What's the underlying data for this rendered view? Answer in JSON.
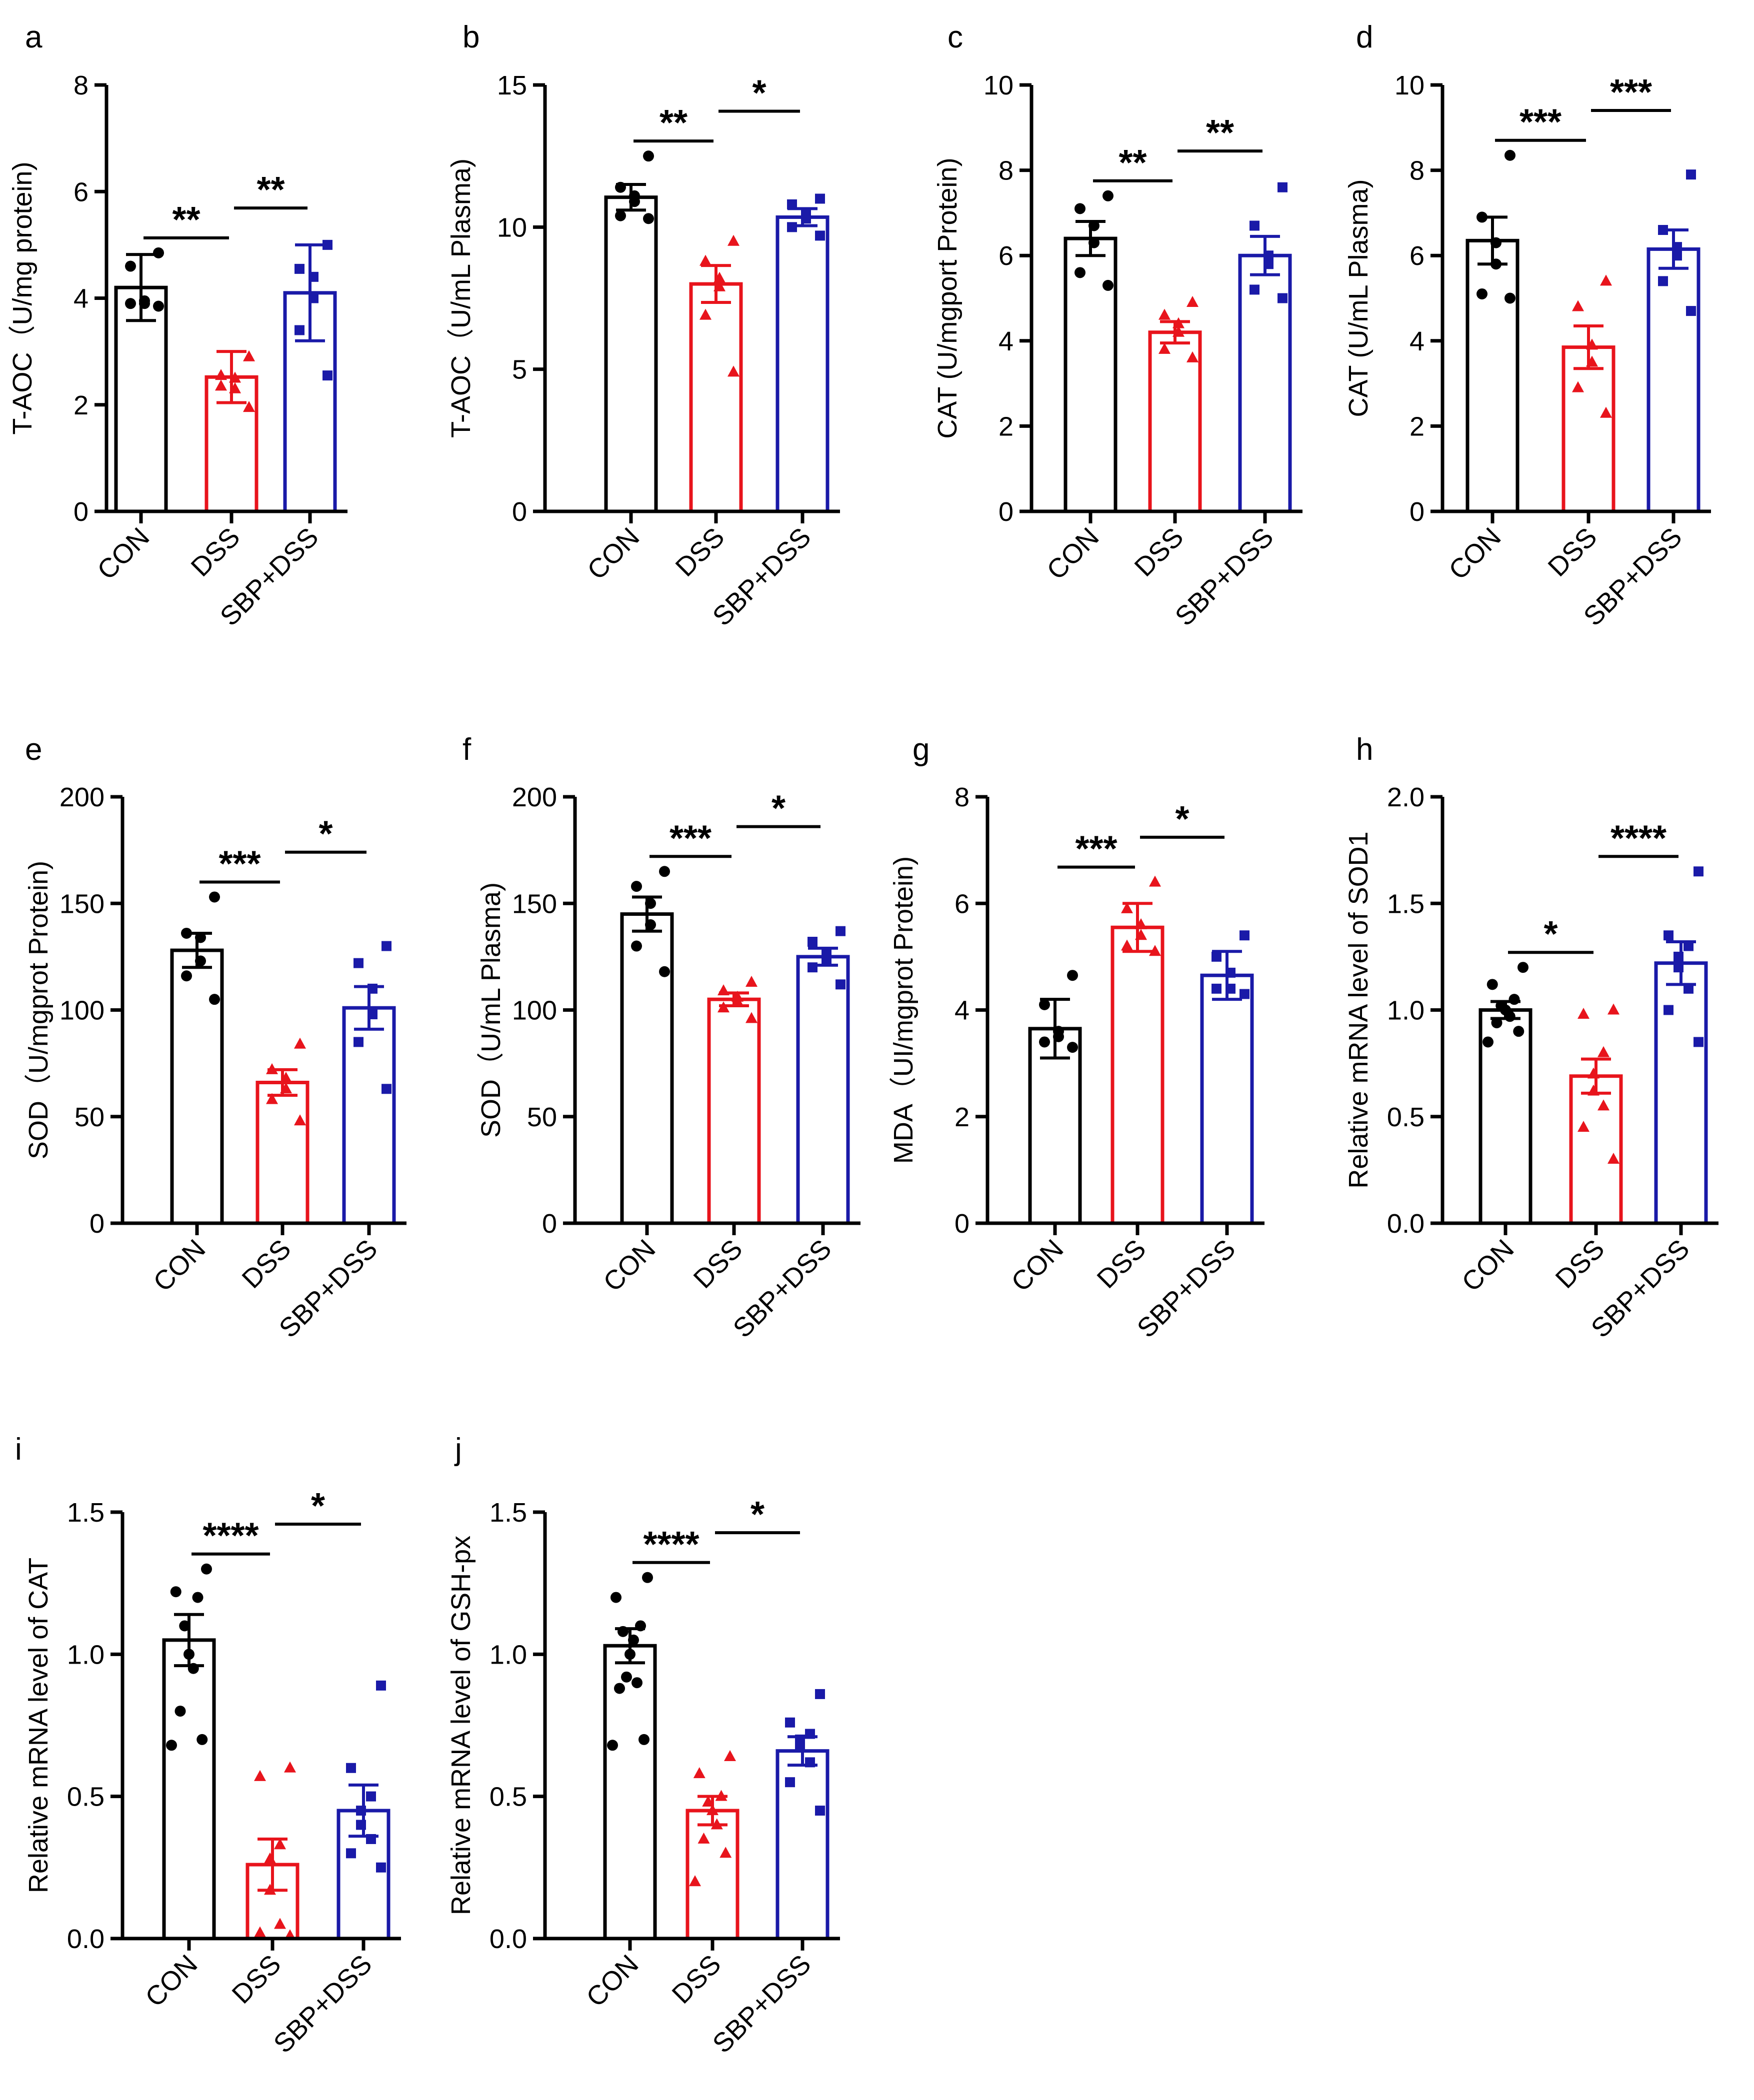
{
  "chart_data": [
    {
      "panel": "a",
      "type": "bar",
      "title": "",
      "ylabel": "T-AOC（U/mg protein)",
      "ylim": [
        0,
        8
      ],
      "yticks": [
        "0",
        "2",
        "4",
        "6",
        "8"
      ],
      "categories": [
        "CON",
        "DSS",
        "SBP+DSS"
      ],
      "series": [
        {
          "name": "CON",
          "mean": 4.2,
          "sem": 0.62,
          "points": [
            4.85,
            4.6,
            3.95,
            3.9,
            3.9,
            3.85
          ]
        },
        {
          "name": "DSS",
          "mean": 2.52,
          "sem": 0.48,
          "points": [
            2.9,
            2.55,
            2.5,
            2.3,
            2.35,
            1.95
          ]
        },
        {
          "name": "SBP+DSS",
          "mean": 4.1,
          "sem": 0.9,
          "points": [
            5.0,
            4.55,
            4.4,
            4.0,
            3.4,
            2.55
          ]
        }
      ],
      "significance": [
        {
          "from": 0,
          "to": 1,
          "label": "**"
        },
        {
          "from": 1,
          "to": 2,
          "label": "**"
        }
      ]
    },
    {
      "panel": "b",
      "type": "bar",
      "title": "",
      "ylabel": "T-AOC（U/mL Plasma)",
      "ylim": [
        0,
        15
      ],
      "yticks": [
        "0",
        "5",
        "10",
        "15"
      ],
      "categories": [
        "CON",
        "DSS",
        "SBP+DSS"
      ],
      "series": [
        {
          "name": "CON",
          "mean": 11.05,
          "sem": 0.45,
          "points": [
            12.5,
            11.4,
            11.1,
            10.9,
            10.4,
            10.3
          ]
        },
        {
          "name": "DSS",
          "mean": 8.0,
          "sem": 0.65,
          "points": [
            9.5,
            8.8,
            8.2,
            7.9,
            6.9,
            4.9
          ]
        },
        {
          "name": "SBP+DSS",
          "mean": 10.35,
          "sem": 0.3,
          "points": [
            11.0,
            10.8,
            10.5,
            10.3,
            10.0,
            9.7
          ]
        }
      ],
      "significance": [
        {
          "from": 0,
          "to": 1,
          "label": "**"
        },
        {
          "from": 1,
          "to": 2,
          "label": "*"
        }
      ]
    },
    {
      "panel": "c",
      "type": "bar",
      "title": "",
      "ylabel": "CAT (U/mgport Protein)",
      "ylim": [
        0,
        10
      ],
      "yticks": [
        "0",
        "2",
        "4",
        "6",
        "8",
        "10"
      ],
      "categories": [
        "CON",
        "DSS",
        "SBP+DSS"
      ],
      "series": [
        {
          "name": "CON",
          "mean": 6.4,
          "sem": 0.4,
          "points": [
            7.4,
            7.1,
            6.7,
            6.3,
            5.6,
            5.3
          ]
        },
        {
          "name": "DSS",
          "mean": 4.2,
          "sem": 0.25,
          "points": [
            4.9,
            4.6,
            4.4,
            4.2,
            3.8,
            3.6
          ]
        },
        {
          "name": "SBP+DSS",
          "mean": 6.0,
          "sem": 0.45,
          "points": [
            7.6,
            6.7,
            6.0,
            5.8,
            5.2,
            5.0
          ]
        }
      ],
      "significance": [
        {
          "from": 0,
          "to": 1,
          "label": "**"
        },
        {
          "from": 1,
          "to": 2,
          "label": "**"
        }
      ]
    },
    {
      "panel": "d",
      "type": "bar",
      "title": "",
      "ylabel": "CAT (U/mL Plasma)",
      "ylim": [
        0,
        10
      ],
      "yticks": [
        "0",
        "2",
        "4",
        "6",
        "8",
        "10"
      ],
      "categories": [
        "CON",
        "DSS",
        "SBP+DSS"
      ],
      "series": [
        {
          "name": "CON",
          "mean": 6.35,
          "sem": 0.55,
          "points": [
            8.35,
            6.9,
            6.3,
            5.8,
            5.1,
            5.0
          ]
        },
        {
          "name": "DSS",
          "mean": 3.85,
          "sem": 0.5,
          "points": [
            5.4,
            4.8,
            3.9,
            3.5,
            2.9,
            2.3
          ]
        },
        {
          "name": "SBP+DSS",
          "mean": 6.15,
          "sem": 0.45,
          "points": [
            7.9,
            6.6,
            6.2,
            6.0,
            5.4,
            4.7
          ]
        }
      ],
      "significance": [
        {
          "from": 0,
          "to": 1,
          "label": "***"
        },
        {
          "from": 1,
          "to": 2,
          "label": "***"
        }
      ]
    },
    {
      "panel": "e",
      "type": "bar",
      "title": "",
      "ylabel": "SOD（U/mgprot Protein)",
      "ylim": [
        0,
        200
      ],
      "yticks": [
        "0",
        "50",
        "100",
        "150",
        "200"
      ],
      "categories": [
        "CON",
        "DSS",
        "SBP+DSS"
      ],
      "series": [
        {
          "name": "CON",
          "mean": 128,
          "sem": 8,
          "points": [
            153,
            136,
            134,
            123,
            116,
            105
          ]
        },
        {
          "name": "DSS",
          "mean": 66,
          "sem": 6,
          "points": [
            84,
            72,
            68,
            63,
            58,
            48
          ]
        },
        {
          "name": "SBP+DSS",
          "mean": 101,
          "sem": 10,
          "points": [
            130,
            122,
            110,
            98,
            85,
            63
          ]
        }
      ],
      "significance": [
        {
          "from": 0,
          "to": 1,
          "label": "***"
        },
        {
          "from": 1,
          "to": 2,
          "label": "*"
        }
      ]
    },
    {
      "panel": "f",
      "type": "bar",
      "title": "",
      "ylabel": "SOD（U/mL Plasma)",
      "ylim": [
        0,
        200
      ],
      "yticks": [
        "0",
        "50",
        "100",
        "150",
        "200"
      ],
      "categories": [
        "CON",
        "DSS",
        "SBP+DSS"
      ],
      "series": [
        {
          "name": "CON",
          "mean": 145,
          "sem": 8,
          "points": [
            165,
            158,
            150,
            140,
            130,
            118
          ]
        },
        {
          "name": "DSS",
          "mean": 105,
          "sem": 3,
          "points": [
            113,
            109,
            106,
            104,
            101,
            96
          ]
        },
        {
          "name": "SBP+DSS",
          "mean": 125,
          "sem": 4,
          "points": [
            137,
            132,
            127,
            123,
            120,
            112
          ]
        }
      ],
      "significance": [
        {
          "from": 0,
          "to": 1,
          "label": "***"
        },
        {
          "from": 1,
          "to": 2,
          "label": "*"
        }
      ]
    },
    {
      "panel": "g",
      "type": "bar",
      "title": "",
      "ylabel": "MDA（UI/mgprot Protein)",
      "ylim": [
        0,
        8
      ],
      "yticks": [
        "0",
        "2",
        "4",
        "6",
        "8"
      ],
      "categories": [
        "CON",
        "DSS",
        "SBP+DSS"
      ],
      "series": [
        {
          "name": "CON",
          "mean": 3.65,
          "sem": 0.55,
          "points": [
            4.65,
            4.1,
            3.6,
            3.5,
            3.4,
            3.3
          ]
        },
        {
          "name": "DSS",
          "mean": 5.55,
          "sem": 0.45,
          "points": [
            6.4,
            5.9,
            5.6,
            5.4,
            5.2,
            5.1
          ]
        },
        {
          "name": "SBP+DSS",
          "mean": 4.65,
          "sem": 0.45,
          "points": [
            5.4,
            5.0,
            4.7,
            4.4,
            4.4,
            4.3
          ]
        }
      ],
      "significance": [
        {
          "from": 0,
          "to": 1,
          "label": "***"
        },
        {
          "from": 1,
          "to": 2,
          "label": "*"
        }
      ]
    },
    {
      "panel": "h",
      "type": "bar",
      "title": "",
      "ylabel": "Relative mRNA level of SOD1",
      "ylim": [
        0,
        2.0
      ],
      "yticks": [
        "0.0",
        "0.5",
        "1.0",
        "1.5",
        "2.0"
      ],
      "categories": [
        "CON",
        "DSS",
        "SBP+DSS"
      ],
      "series": [
        {
          "name": "CON",
          "mean": 1.0,
          "sem": 0.04,
          "points": [
            1.2,
            1.12,
            1.05,
            1.02,
            1.0,
            0.97,
            0.94,
            0.9,
            0.85
          ]
        },
        {
          "name": "DSS",
          "mean": 0.69,
          "sem": 0.08,
          "points": [
            1.0,
            0.98,
            0.8,
            0.7,
            0.62,
            0.55,
            0.45,
            0.3
          ]
        },
        {
          "name": "SBP+DSS",
          "mean": 1.22,
          "sem": 0.1,
          "points": [
            1.65,
            1.35,
            1.3,
            1.25,
            1.2,
            1.1,
            1.0,
            0.85
          ]
        }
      ],
      "significance": [
        {
          "from": 0,
          "to": 1,
          "label": "*"
        },
        {
          "from": 1,
          "to": 2,
          "label": "****"
        }
      ]
    },
    {
      "panel": "i",
      "type": "bar",
      "title": "",
      "ylabel": "Relative mRNA level of CAT",
      "ylim": [
        0,
        1.5
      ],
      "yticks": [
        "0.0",
        "0.5",
        "1.0",
        "1.5"
      ],
      "categories": [
        "CON",
        "DSS",
        "SBP+DSS"
      ],
      "series": [
        {
          "name": "CON",
          "mean": 1.05,
          "sem": 0.09,
          "points": [
            1.3,
            1.22,
            1.2,
            1.1,
            1.0,
            0.95,
            0.8,
            0.7,
            0.68
          ]
        },
        {
          "name": "DSS",
          "mean": 0.26,
          "sem": 0.09,
          "points": [
            0.6,
            0.57,
            0.33,
            0.28,
            0.17,
            0.05,
            0.02,
            0.01
          ]
        },
        {
          "name": "SBP+DSS",
          "mean": 0.45,
          "sem": 0.09,
          "points": [
            0.89,
            0.6,
            0.5,
            0.45,
            0.4,
            0.35,
            0.3,
            0.25
          ]
        }
      ],
      "significance": [
        {
          "from": 0,
          "to": 1,
          "label": "****"
        },
        {
          "from": 1,
          "to": 2,
          "label": "*"
        }
      ]
    },
    {
      "panel": "j",
      "type": "bar",
      "title": "",
      "ylabel": "Relative mRNA level of GSH-px",
      "ylim": [
        0,
        1.5
      ],
      "yticks": [
        "0.0",
        "0.5",
        "1.0",
        "1.5"
      ],
      "categories": [
        "CON",
        "DSS",
        "SBP+DSS"
      ],
      "series": [
        {
          "name": "CON",
          "mean": 1.03,
          "sem": 0.06,
          "points": [
            1.27,
            1.2,
            1.1,
            1.08,
            1.05,
            1.0,
            0.92,
            0.9,
            0.88,
            0.7,
            0.68
          ]
        },
        {
          "name": "DSS",
          "mean": 0.45,
          "sem": 0.05,
          "points": [
            0.64,
            0.58,
            0.5,
            0.48,
            0.45,
            0.4,
            0.35,
            0.3,
            0.2
          ]
        },
        {
          "name": "SBP+DSS",
          "mean": 0.66,
          "sem": 0.05,
          "points": [
            0.86,
            0.76,
            0.72,
            0.7,
            0.68,
            0.62,
            0.55,
            0.45
          ]
        }
      ],
      "significance": [
        {
          "from": 0,
          "to": 1,
          "label": "****"
        },
        {
          "from": 1,
          "to": 2,
          "label": "*"
        }
      ]
    }
  ],
  "style": {
    "colors": [
      "#000000",
      "#e8141c",
      "#1a1aa8"
    ],
    "markers": [
      "circle",
      "triangle",
      "square"
    ],
    "label_color": "#000000"
  }
}
